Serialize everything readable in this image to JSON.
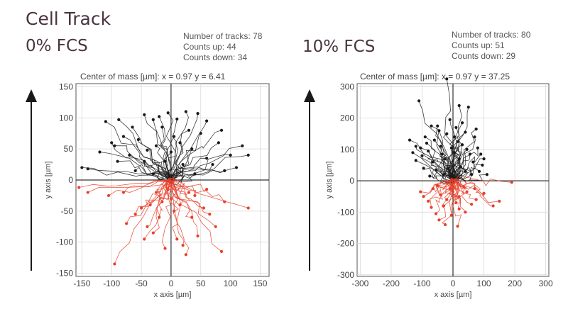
{
  "page": {
    "title": "Cell Track"
  },
  "panels": [
    {
      "condition": "0% FCS",
      "stats": {
        "tracks": "Number of tracks: 78",
        "up": "Counts up: 44",
        "down": "Counts down: 34"
      },
      "center_of_mass": "Center of mass [µm]: x = 0.97 y = 6.41"
    },
    {
      "condition": "10% FCS",
      "stats": {
        "tracks": "Number of tracks: 80",
        "up": "Counts up: 51",
        "down": "Counts down: 29"
      },
      "center_of_mass": "Center of mass [µm]: x = 0.97 y = 37.25"
    }
  ],
  "colors": {
    "up": "#1a1a1a",
    "down": "#e8402a",
    "axis": "#555555",
    "grid": "#d8d8d8",
    "title": "#4a3340"
  },
  "chart_data": [
    {
      "type": "scatter",
      "title": "0% FCS",
      "xlabel": "x axis [µm]",
      "ylabel": "y axis [µm]",
      "xlim": [
        -160,
        165
      ],
      "ylim": [
        -155,
        155
      ],
      "xticks": [
        -150,
        -100,
        -50,
        0,
        50,
        100,
        150
      ],
      "yticks": [
        -150,
        -100,
        -50,
        0,
        50,
        100,
        150
      ],
      "grid": true,
      "series": [
        {
          "name": "Counts up",
          "color": "#1a1a1a",
          "points": [
            [
              -110,
              94
            ],
            [
              -88,
              97
            ],
            [
              -45,
              105
            ],
            [
              -20,
              102
            ],
            [
              -5,
              108
            ],
            [
              25,
              110
            ],
            [
              45,
              107
            ],
            [
              85,
              80
            ],
            [
              120,
              55
            ],
            [
              -150,
              20
            ],
            [
              -65,
              85
            ],
            [
              -30,
              97
            ],
            [
              10,
              98
            ],
            [
              60,
              95
            ],
            [
              -100,
              60
            ],
            [
              -80,
              70
            ],
            [
              -55,
              65
            ],
            [
              5,
              70
            ],
            [
              80,
              60
            ],
            [
              130,
              40
            ],
            [
              -120,
              45
            ],
            [
              -40,
              48
            ],
            [
              35,
              50
            ],
            [
              -90,
              30
            ],
            [
              -10,
              30
            ],
            [
              60,
              35
            ],
            [
              110,
              20
            ],
            [
              -140,
              18
            ],
            [
              20,
              25
            ],
            [
              -60,
              15
            ],
            [
              -30,
              10
            ],
            [
              40,
              10
            ],
            [
              90,
              15
            ],
            [
              -25,
              55
            ],
            [
              50,
              75
            ],
            [
              -70,
              40
            ],
            [
              0,
              45
            ],
            [
              70,
              25
            ],
            [
              -45,
              30
            ],
            [
              15,
              60
            ],
            [
              100,
              40
            ],
            [
              -15,
              85
            ],
            [
              30,
              80
            ],
            [
              -95,
              55
            ]
          ]
        },
        {
          "name": "Counts down",
          "color": "#e8402a",
          "points": [
            [
              -155,
              -12
            ],
            [
              -140,
              -20
            ],
            [
              -95,
              -135
            ],
            [
              -75,
              -70
            ],
            [
              -40,
              -75
            ],
            [
              -30,
              -85
            ],
            [
              -20,
              -60
            ],
            [
              -10,
              -110
            ],
            [
              10,
              -95
            ],
            [
              20,
              -105
            ],
            [
              25,
              -120
            ],
            [
              35,
              -60
            ],
            [
              55,
              -45
            ],
            [
              85,
              -115
            ],
            [
              75,
              -75
            ],
            [
              90,
              -35
            ],
            [
              130,
              -45
            ],
            [
              -60,
              -55
            ],
            [
              -50,
              -45
            ],
            [
              -35,
              -40
            ],
            [
              -15,
              -35
            ],
            [
              0,
              -30
            ],
            [
              15,
              -40
            ],
            [
              40,
              -25
            ],
            [
              60,
              -15
            ],
            [
              -80,
              -20
            ],
            [
              -105,
              -25
            ],
            [
              5,
              -50
            ],
            [
              45,
              -90
            ],
            [
              -25,
              -20
            ],
            [
              30,
              -20
            ],
            [
              -5,
              -15
            ],
            [
              65,
              -55
            ],
            [
              -45,
              -95
            ]
          ]
        }
      ]
    },
    {
      "type": "scatter",
      "title": "10% FCS",
      "xlabel": "x axis [µm]",
      "ylabel": "y axis [µm]",
      "xlim": [
        -310,
        310
      ],
      "ylim": [
        -305,
        310
      ],
      "xticks": [
        -300,
        -200,
        -100,
        0,
        100,
        200,
        300
      ],
      "yticks": [
        -300,
        -200,
        -100,
        0,
        100,
        200,
        300
      ],
      "grid": true,
      "series": [
        {
          "name": "Counts up",
          "color": "#1a1a1a",
          "points": [
            [
              -110,
              255
            ],
            [
              -20,
              325
            ],
            [
              20,
              240
            ],
            [
              50,
              235
            ],
            [
              -140,
              130
            ],
            [
              -120,
              110
            ],
            [
              -90,
              140
            ],
            [
              -70,
              175
            ],
            [
              -45,
              160
            ],
            [
              -20,
              150
            ],
            [
              10,
              170
            ],
            [
              40,
              155
            ],
            [
              70,
              140
            ],
            [
              80,
              105
            ],
            [
              100,
              70
            ],
            [
              55,
              85
            ],
            [
              30,
              115
            ],
            [
              -40,
              110
            ],
            [
              -80,
              95
            ],
            [
              -100,
              80
            ],
            [
              -65,
              60
            ],
            [
              -25,
              70
            ],
            [
              5,
              90
            ],
            [
              65,
              60
            ],
            [
              85,
              30
            ],
            [
              -55,
              35
            ],
            [
              -15,
              40
            ],
            [
              25,
              45
            ],
            [
              95,
              50
            ],
            [
              -35,
              85
            ],
            [
              15,
              125
            ],
            [
              -85,
              120
            ],
            [
              45,
              100
            ],
            [
              -120,
              65
            ],
            [
              110,
              20
            ],
            [
              -60,
              130
            ],
            [
              -10,
              195
            ],
            [
              30,
              185
            ],
            [
              -130,
              90
            ],
            [
              75,
              165
            ],
            [
              -5,
              105
            ],
            [
              60,
              20
            ],
            [
              -30,
              20
            ],
            [
              -95,
              40
            ],
            [
              20,
              70
            ],
            [
              -75,
              15
            ],
            [
              40,
              30
            ],
            [
              -50,
              175
            ],
            [
              90,
              85
            ],
            [
              -105,
              105
            ],
            [
              5,
              140
            ]
          ]
        },
        {
          "name": "Counts down",
          "color": "#e8402a",
          "points": [
            [
              -95,
              -50
            ],
            [
              -80,
              -65
            ],
            [
              -55,
              -105
            ],
            [
              -45,
              -125
            ],
            [
              -25,
              -140
            ],
            [
              15,
              -145
            ],
            [
              -5,
              -110
            ],
            [
              20,
              -90
            ],
            [
              40,
              -100
            ],
            [
              60,
              -75
            ],
            [
              75,
              -60
            ],
            [
              130,
              -80
            ],
            [
              150,
              -65
            ],
            [
              190,
              -5
            ],
            [
              -65,
              -25
            ],
            [
              -40,
              -45
            ],
            [
              -20,
              -60
            ],
            [
              0,
              -35
            ],
            [
              20,
              -50
            ],
            [
              45,
              -35
            ],
            [
              70,
              -25
            ],
            [
              -70,
              -85
            ],
            [
              -30,
              -80
            ],
            [
              10,
              -70
            ],
            [
              100,
              -40
            ],
            [
              -50,
              -15
            ],
            [
              35,
              -20
            ],
            [
              -10,
              -25
            ],
            [
              -105,
              -35
            ]
          ]
        }
      ]
    }
  ]
}
